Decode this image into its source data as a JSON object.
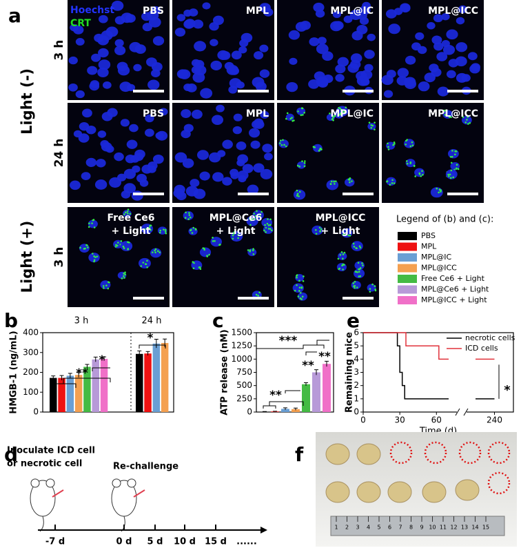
{
  "panel_labels": [
    "a",
    "b",
    "c",
    "d",
    "e",
    "f"
  ],
  "panel_a": {
    "stain_labels": [
      {
        "text": "Hoechst",
        "color": "#2233ff"
      },
      {
        "text": "CRT",
        "color": "#22dd22"
      }
    ],
    "light_groups": [
      "Light (-)",
      "Light (+)"
    ],
    "row_times": [
      "3 h",
      "24 h",
      "3 h"
    ],
    "images": [
      [
        [
          "PBS"
        ],
        [
          "MPL"
        ],
        [
          "MPL@IC"
        ],
        [
          "MPL@ICC"
        ]
      ],
      [
        [
          "PBS"
        ],
        [
          "MPL"
        ],
        [
          "MPL@IC"
        ],
        [
          "MPL@ICC"
        ]
      ],
      [
        [
          "Free Ce6",
          "+ Light"
        ],
        [
          "MPL@Ce6",
          "+ Light"
        ],
        [
          "MPL@ICC",
          "+ Light"
        ]
      ]
    ]
  },
  "legend": {
    "title": "Legend of (b) and (c):",
    "items": [
      {
        "name": "PBS",
        "color": "#000000"
      },
      {
        "name": "MPL",
        "color": "#ee1111"
      },
      {
        "name": "MPL@IC",
        "color": "#6a9fd4"
      },
      {
        "name": "MPL@ICC",
        "color": "#f4a050"
      },
      {
        "name": "Free Ce6 + Light",
        "color": "#44bb44"
      },
      {
        "name": "MPL@Ce6 + Light",
        "color": "#b79ad8"
      },
      {
        "name": "MPL@ICC + Light",
        "color": "#f070c8"
      }
    ]
  },
  "chart_data": [
    {
      "type": "bar",
      "ylabel": "HMGB-1 (ng/mL)",
      "groups": [
        "3 h",
        "24 h"
      ],
      "ylim": [
        0,
        400
      ],
      "yticks": [
        0,
        100,
        200,
        300,
        400
      ],
      "series": [
        {
          "values": [
            172,
            293
          ],
          "errors": [
            10,
            15
          ]
        },
        {
          "values": [
            172,
            295
          ],
          "errors": [
            12,
            10
          ]
        },
        {
          "values": [
            183,
            345
          ],
          "errors": [
            12,
            22
          ]
        },
        {
          "values": [
            187,
            348
          ],
          "errors": [
            12,
            20
          ]
        },
        {
          "values": [
            228,
            null
          ],
          "errors": [
            12,
            null
          ]
        },
        {
          "values": [
            265,
            null
          ],
          "errors": [
            12,
            null
          ]
        },
        {
          "values": [
            268,
            null
          ],
          "errors": [
            10,
            null
          ]
        }
      ],
      "annotations": [
        "**",
        "*",
        "*"
      ]
    },
    {
      "type": "bar",
      "ylabel": "ATP release (nM)",
      "ylim": [
        0,
        1500
      ],
      "yticks": [
        0,
        250,
        500,
        750,
        1000,
        1250,
        1500
      ],
      "values": [
        5,
        10,
        60,
        55,
        525,
        750,
        910
      ],
      "errors": [
        5,
        5,
        20,
        20,
        30,
        50,
        50
      ],
      "annotations": [
        "**",
        "***",
        "**",
        "**"
      ]
    },
    {
      "type": "step",
      "ylabel": "Remaining mice",
      "xlabel": "Time (d)",
      "ylim": [
        0,
        6
      ],
      "yticks": [
        0,
        1,
        2,
        3,
        4,
        5,
        6
      ],
      "xlim": [
        0,
        250
      ],
      "xticks": [
        0,
        30,
        60,
        240
      ],
      "axis_break": [
        70,
        230
      ],
      "series": [
        {
          "name": "necrotic cells",
          "color": "#000000",
          "x": [
            0,
            28,
            30,
            32,
            34,
            240
          ],
          "values": [
            6,
            5,
            3,
            2,
            1,
            1
          ]
        },
        {
          "name": "ICD cells",
          "color": "#e0303a",
          "x": [
            0,
            35,
            62,
            240
          ],
          "values": [
            6,
            5,
            4,
            4
          ]
        }
      ],
      "annotations": [
        "*"
      ]
    }
  ],
  "panel_d": {
    "steps": [
      [
        "Inoculate ICD cell",
        "or necrotic cell"
      ],
      [
        "Re-challenge"
      ]
    ],
    "timeline": [
      "-7 d",
      "0 d",
      "5 d",
      "10 d",
      "15 d",
      "......"
    ]
  },
  "panel_f": {
    "ruler_labels": [
      "1",
      "2",
      "3",
      "4",
      "5",
      "6",
      "7",
      "8",
      "9",
      "10",
      "11",
      "12",
      "13",
      "14",
      "15"
    ]
  }
}
